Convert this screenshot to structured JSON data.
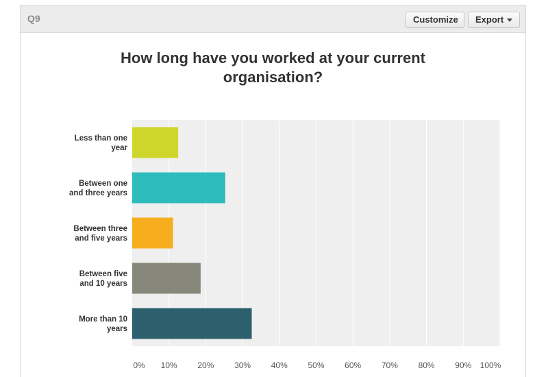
{
  "header": {
    "question_label": "Q9",
    "customize_label": "Customize",
    "export_label": "Export"
  },
  "chart_data": {
    "type": "bar",
    "orientation": "horizontal",
    "title_lines": [
      "How long have you worked at your current",
      "organisation?"
    ],
    "categories": [
      [
        "Less than one",
        "year"
      ],
      [
        "Between one",
        "and three years"
      ],
      [
        "Between three",
        "and five years"
      ],
      [
        "Between five",
        "and 10 years"
      ],
      [
        "More than 10",
        "years"
      ]
    ],
    "values": [
      12.5,
      25.3,
      11.1,
      18.6,
      32.5
    ],
    "colors": [
      "#cfd62b",
      "#2fbcbc",
      "#f6ae1f",
      "#87877a",
      "#2e5f6d"
    ],
    "xlim": [
      0,
      100
    ],
    "xticks": [
      "0%",
      "10%",
      "20%",
      "30%",
      "40%",
      "50%",
      "60%",
      "70%",
      "80%",
      "90%",
      "100%"
    ],
    "grid": true,
    "plot_background": "#efefef"
  }
}
